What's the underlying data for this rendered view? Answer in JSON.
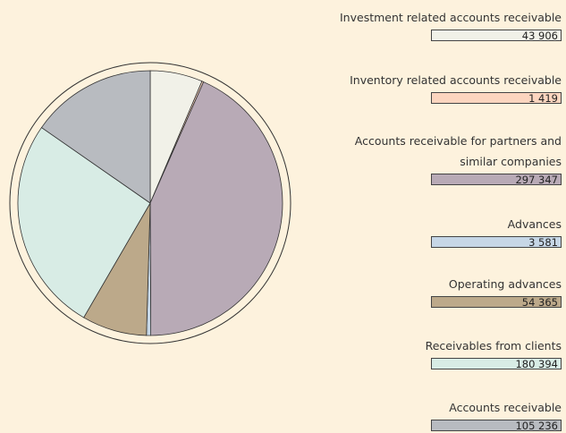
{
  "chart_data": {
    "type": "pie",
    "categories": [
      "Investment related accounts receivable",
      "Inventory related accounts receivable",
      "Accounts receivable for partners and similar companies",
      "Advances",
      "Operating advances",
      "Receivables from clients",
      "Accounts receivable"
    ],
    "values": [
      43906,
      1419,
      297347,
      3581,
      54365,
      180394,
      105236
    ],
    "value_labels": [
      "43 906",
      "1 419",
      "297 347",
      "3 581",
      "54 365",
      "180 394",
      "105 236"
    ],
    "colors": [
      "#f1f1e8",
      "#fcd5bf",
      "#b8aab6",
      "#c6d7e6",
      "#bca98a",
      "#d8ece5",
      "#b8bbc0"
    ]
  }
}
